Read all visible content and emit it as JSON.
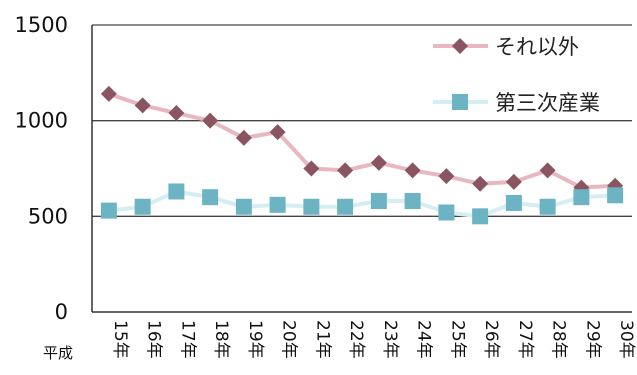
{
  "chart_data": {
    "type": "line",
    "x_prefix": "平成",
    "categories": [
      "15年",
      "16年",
      "17年",
      "18年",
      "19年",
      "20年",
      "21年",
      "22年",
      "23年",
      "24年",
      "25年",
      "26年",
      "27年",
      "28年",
      "29年",
      "30年"
    ],
    "series": [
      {
        "name": "それ以外",
        "marker": "diamond",
        "line_color": "#e8b7c0",
        "marker_color": "#8a5560",
        "values": [
          1140,
          1080,
          1040,
          1000,
          910,
          940,
          750,
          740,
          780,
          740,
          710,
          670,
          680,
          740,
          650,
          660
        ]
      },
      {
        "name": "第三次産業",
        "marker": "square",
        "line_color": "#d5eef2",
        "marker_color": "#6cb4c3",
        "values": [
          530,
          550,
          630,
          600,
          550,
          560,
          550,
          550,
          580,
          580,
          520,
          500,
          570,
          550,
          600,
          610
        ]
      }
    ],
    "ylim": [
      0,
      1500
    ],
    "yticks": [
      "0",
      "500",
      "1000",
      "1500"
    ],
    "xlabel": "",
    "ylabel": "",
    "grid": true,
    "legend_position": "top-right"
  }
}
